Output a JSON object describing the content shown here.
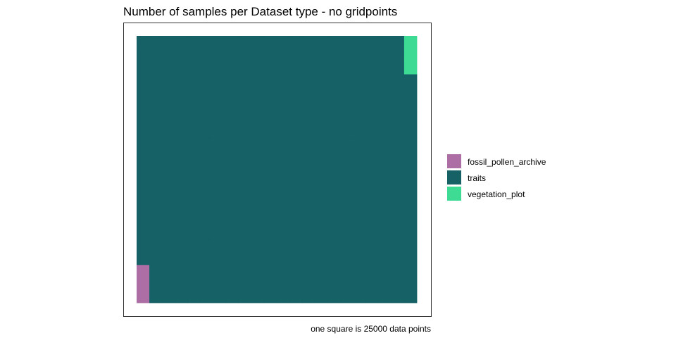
{
  "chart_data": {
    "type": "waffle",
    "title": "Number of samples per Dataset type - no gridpoints",
    "caption": "one square is 25000 data points",
    "grid": {
      "rows": 21,
      "cols": 22,
      "fill_order": "column-wise from bottom-left"
    },
    "series": [
      {
        "name": "fossil_pollen_archive",
        "squares": 3,
        "color": "#AD6EA5"
      },
      {
        "name": "traits",
        "squares": 456,
        "color": "#156166"
      },
      {
        "name": "vegetation_plot",
        "squares": 3,
        "color": "#3EDB95"
      }
    ],
    "legend": {
      "position": "right"
    },
    "border": true,
    "grid_lines": false
  }
}
